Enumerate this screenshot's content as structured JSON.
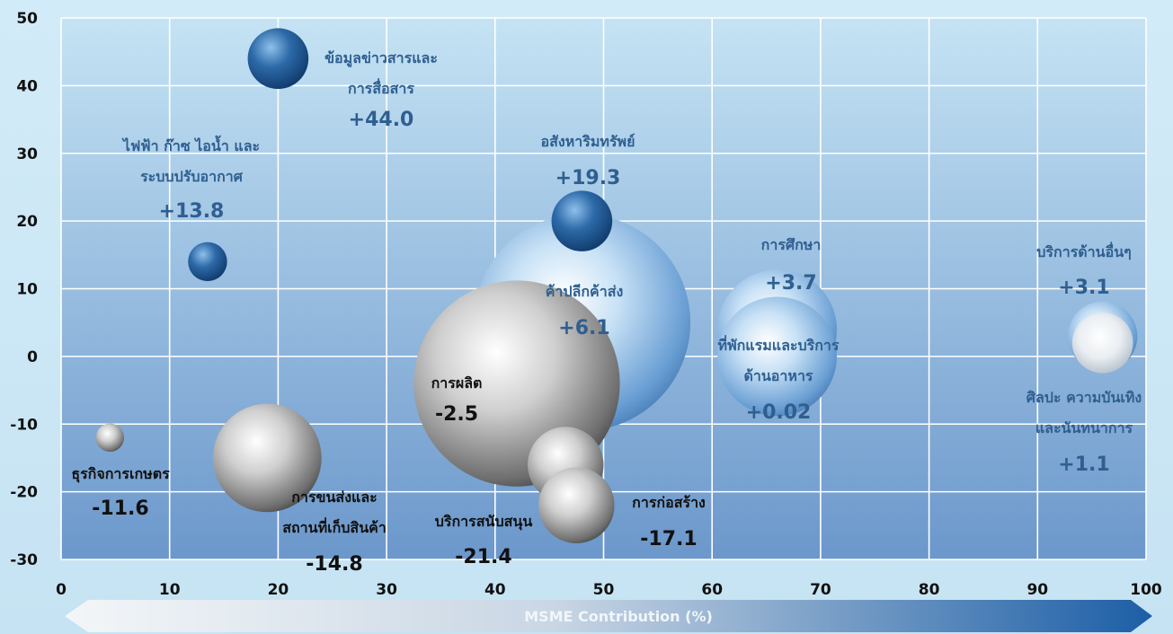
{
  "chart_data": {
    "type": "bubble",
    "xlabel": "MSME Contribution (%)",
    "ylabel": "",
    "xlim": [
      0,
      100
    ],
    "ylim": [
      -30,
      50
    ],
    "x_ticks": [
      0,
      10,
      20,
      30,
      40,
      50,
      60,
      70,
      80,
      90,
      100
    ],
    "y_ticks": [
      -30,
      -20,
      -10,
      0,
      10,
      20,
      30,
      40,
      50
    ],
    "grid": true,
    "colors": {
      "positive": "#1f5a95",
      "positive_light": "#5b93cd",
      "negative": "#8a8a8a",
      "positive_text": "#2f5f90",
      "negative_text": "#111111"
    },
    "bubbles": [
      {
        "id": "manufacturing",
        "lines": [
          "การผลิต"
        ],
        "value_label": "-2.5",
        "value": -2.5,
        "x": 42,
        "y": -4,
        "size": 9.5,
        "color": "gray",
        "text_color": "#111111"
      },
      {
        "id": "wholesale-retail",
        "lines": [
          "ค้าปลีกค้าส่ง"
        ],
        "value_label": "+6.1",
        "value": 6.1,
        "x": 48,
        "y": 5,
        "size": 10,
        "color": "blue-light",
        "text_color": "#2f5f90"
      },
      {
        "id": "ict",
        "lines": [
          "ข้อมูลข่าวสารและ",
          "การสื่อสาร"
        ],
        "value_label": "+44.0",
        "value": 44.0,
        "x": 20,
        "y": 44,
        "size": 2.8,
        "color": "blue",
        "text_color": "#2f5f90"
      },
      {
        "id": "energy",
        "lines": [
          "ไฟฟ้า ก๊าซ ไอน้ำ และ",
          "ระบบปรับอากาศ"
        ],
        "value_label": "+13.8",
        "value": 13.8,
        "x": 13.5,
        "y": 14,
        "size": 1.8,
        "color": "blue",
        "text_color": "#2f5f90"
      },
      {
        "id": "real-estate",
        "lines": [
          "อสังหาริมทรัพย์"
        ],
        "value_label": "+19.3",
        "value": 19.3,
        "x": 48,
        "y": 20,
        "size": 2.8,
        "color": "blue",
        "text_color": "#2f5f90"
      },
      {
        "id": "education",
        "lines": [
          "การศึกษา"
        ],
        "value_label": "+3.7",
        "value": 3.7,
        "x": 66,
        "y": 4,
        "size": 5.5,
        "color": "blue-light",
        "text_color": "#2f5f90"
      },
      {
        "id": "accommodation",
        "lines": [
          "ที่พักแรมและบริการ",
          "ด้านอาหาร"
        ],
        "value_label": "+0.02",
        "value": 0.02,
        "x": 66,
        "y": 0,
        "size": 5.5,
        "color": "blue-light",
        "text_color": "#2f5f90"
      },
      {
        "id": "other-services",
        "lines": [
          "บริการด้านอื่นๆ"
        ],
        "value_label": "+3.1",
        "value": 3.1,
        "x": 96,
        "y": 3,
        "size": 3.2,
        "color": "blue-light",
        "text_color": "#2f5f90"
      },
      {
        "id": "arts",
        "lines": [
          "ศิลปะ ความบันเทิง",
          "และนันทนาการ"
        ],
        "value_label": "+1.1",
        "value": 1.1,
        "x": 96,
        "y": 2,
        "size": 2.8,
        "color": "gray-light",
        "text_color": "#2f5f90"
      },
      {
        "id": "agriculture",
        "lines": [
          "ธุรกิจการเกษตร"
        ],
        "value_label": "-11.6",
        "value": -11.6,
        "x": 4.5,
        "y": -12,
        "size": 1.3,
        "color": "gray",
        "text_color": "#111111"
      },
      {
        "id": "transport",
        "lines": [
          "การขนส่งและ",
          "สถานที่เก็บสินค้า"
        ],
        "value_label": "-14.8",
        "value": -14.8,
        "x": 19,
        "y": -15,
        "size": 5,
        "color": "gray",
        "text_color": "#111111"
      },
      {
        "id": "support-services",
        "lines": [
          "บริการสนับสนุน"
        ],
        "value_label": "-21.4",
        "value": -21.4,
        "x": 46.5,
        "y": -16,
        "size": 3.5,
        "color": "gray",
        "text_color": "#111111"
      },
      {
        "id": "construction",
        "lines": [
          "การก่อสร้าง"
        ],
        "value_label": "-17.1",
        "value": -17.1,
        "x": 47.5,
        "y": -22,
        "size": 3.5,
        "color": "gray",
        "text_color": "#111111"
      }
    ]
  }
}
